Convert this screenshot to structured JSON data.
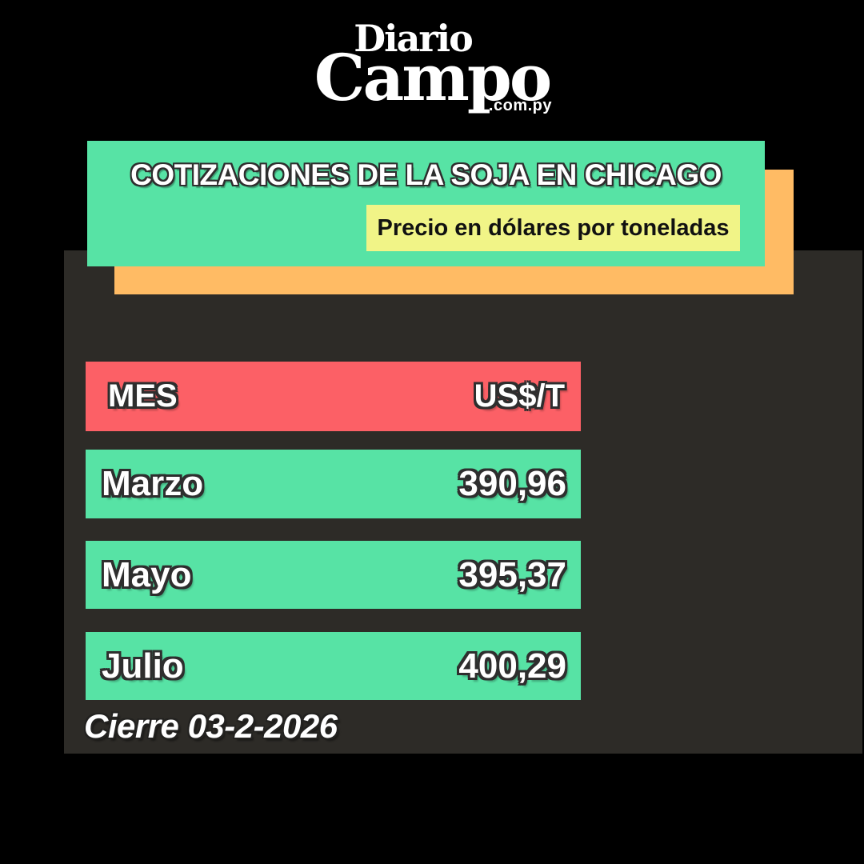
{
  "logo": {
    "line1": "Diario",
    "line2": "Campo",
    "line3": ".com.py"
  },
  "banner": {
    "title": "COTIZACIONES DE LA SOJA EN CHICAGO",
    "subtitle": "Precio en dólares por toneladas"
  },
  "table": {
    "header": {
      "mes": "MES",
      "price": "US$/T"
    },
    "rows": [
      {
        "mes": "Marzo",
        "value": "390,96"
      },
      {
        "mes": "Mayo",
        "value": "395,37"
      },
      {
        "mes": "Julio",
        "value": "400,29"
      }
    ]
  },
  "footer": {
    "cierre": "Cierre 03-2-2026"
  },
  "colors": {
    "background": "#000000",
    "panel": "#2d2b27",
    "green": "#57e3a5",
    "red": "#fc6066",
    "orange": "#ffbb64",
    "yellow": "#f1f487",
    "text_light": "#ffffff",
    "text_dark": "#111111"
  },
  "chart_data": {
    "type": "table",
    "title": "COTIZACIONES DE LA SOJA EN CHICAGO",
    "subtitle": "Precio en dólares por toneladas",
    "columns": [
      "MES",
      "US$/T"
    ],
    "rows": [
      [
        "Marzo",
        "390,96"
      ],
      [
        "Mayo",
        "395,37"
      ],
      [
        "Julio",
        "400,29"
      ]
    ],
    "values_numeric": [
      390.96,
      395.37,
      400.29
    ],
    "note": "Cierre 03-2-2026",
    "source": "Diario Campo .com.py"
  }
}
